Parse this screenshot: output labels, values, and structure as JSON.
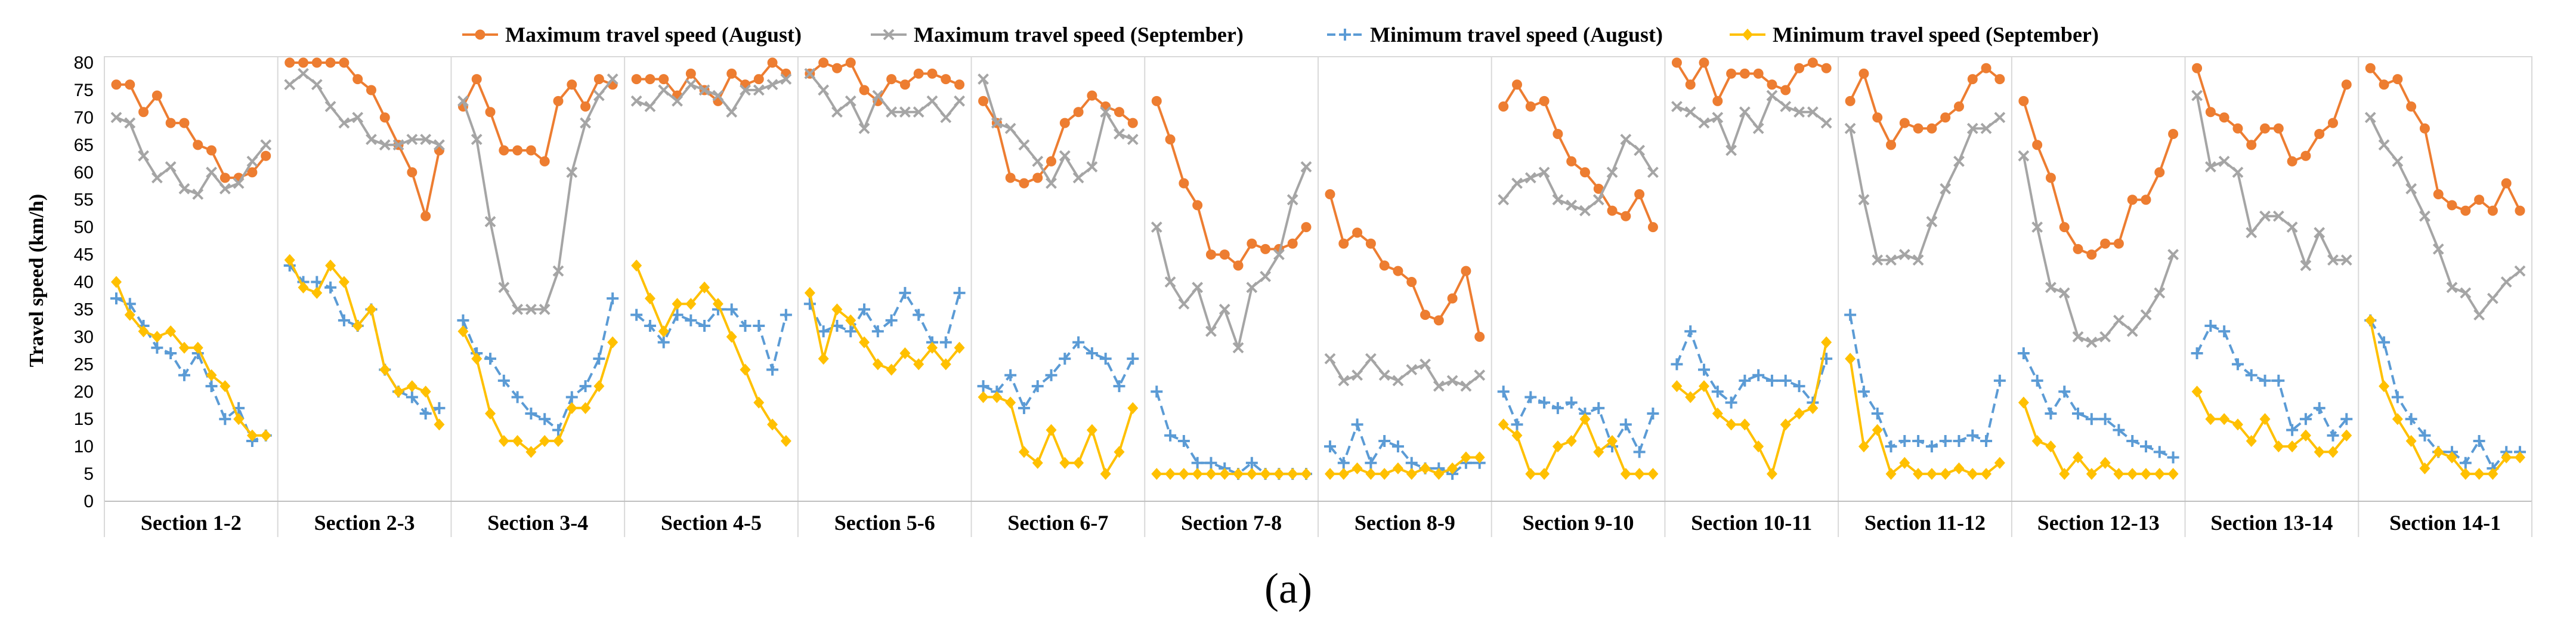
{
  "chart_data": {
    "type": "line",
    "title": "",
    "caption": "(a)",
    "xlabel": "",
    "ylabel": "Travel speed (km/h)",
    "ylim": [
      0,
      80
    ],
    "yticks": [
      0,
      5,
      10,
      15,
      20,
      25,
      30,
      35,
      40,
      45,
      50,
      55,
      60,
      65,
      70,
      75,
      80
    ],
    "grid": "vertical separators between sections",
    "legend_position": "top",
    "categories": [
      "Section 1-2",
      "Section 2-3",
      "Section 3-4",
      "Section 4-5",
      "Section 5-6",
      "Section 6-7",
      "Section 7-8",
      "Section 8-9",
      "Section 9-10",
      "Section 10-11",
      "Section 11-12",
      "Section 12-13",
      "Section 13-14",
      "Section 14-1"
    ],
    "points_per_section": 12,
    "series": [
      {
        "name": "Maximum travel speed (August)",
        "color": "#ED7D31",
        "marker": "circle",
        "line": "solid",
        "values": [
          [
            76,
            76,
            71,
            74,
            69,
            69,
            65,
            64,
            59,
            59,
            60,
            63
          ],
          [
            80,
            80,
            80,
            80,
            80,
            77,
            75,
            70,
            65,
            60,
            52,
            64
          ],
          [
            72,
            77,
            71,
            64,
            64,
            64,
            62,
            73,
            76,
            72,
            77,
            76
          ],
          [
            77,
            77,
            77,
            74,
            78,
            75,
            73,
            78,
            76,
            77,
            80,
            78
          ],
          [
            78,
            80,
            79,
            80,
            75,
            73,
            77,
            76,
            78,
            78,
            77,
            76
          ],
          [
            73,
            69,
            59,
            58,
            59,
            62,
            69,
            71,
            74,
            72,
            71,
            69
          ],
          [
            73,
            66,
            58,
            54,
            45,
            45,
            43,
            47,
            46,
            46,
            47,
            50
          ],
          [
            56,
            47,
            49,
            47,
            43,
            42,
            40,
            34,
            33,
            37,
            42,
            30
          ],
          [
            72,
            76,
            72,
            73,
            67,
            62,
            60,
            57,
            53,
            52,
            56,
            50
          ],
          [
            80,
            76,
            80,
            73,
            78,
            78,
            78,
            76,
            75,
            79,
            80,
            79
          ],
          [
            73,
            78,
            70,
            65,
            69,
            68,
            68,
            70,
            72,
            77,
            79,
            77
          ],
          [
            73,
            65,
            59,
            50,
            46,
            45,
            47,
            47,
            55,
            55,
            60,
            67
          ],
          [
            79,
            71,
            70,
            68,
            65,
            68,
            68,
            62,
            63,
            67,
            69,
            76
          ],
          [
            79,
            76,
            77,
            72,
            68,
            56,
            54,
            53,
            55,
            53,
            58,
            53
          ]
        ]
      },
      {
        "name": "Maximum travel speed (September)",
        "color": "#A5A5A5",
        "marker": "cross",
        "line": "solid",
        "values": [
          [
            70,
            69,
            63,
            59,
            61,
            57,
            56,
            60,
            57,
            58,
            62,
            65
          ],
          [
            76,
            78,
            76,
            72,
            69,
            70,
            66,
            65,
            65,
            66,
            66,
            65
          ],
          [
            73,
            66,
            51,
            39,
            35,
            35,
            35,
            42,
            60,
            69,
            74,
            77
          ],
          [
            73,
            72,
            75,
            73,
            76,
            75,
            74,
            71,
            75,
            75,
            76,
            77
          ],
          [
            78,
            75,
            71,
            73,
            68,
            74,
            71,
            71,
            71,
            73,
            70,
            73
          ],
          [
            77,
            69,
            68,
            65,
            62,
            58,
            63,
            59,
            61,
            71,
            67,
            66
          ],
          [
            50,
            40,
            36,
            39,
            31,
            35,
            28,
            39,
            41,
            45,
            55,
            61
          ],
          [
            26,
            22,
            23,
            26,
            23,
            22,
            24,
            25,
            21,
            22,
            21,
            23
          ],
          [
            55,
            58,
            59,
            60,
            55,
            54,
            53,
            55,
            60,
            66,
            64,
            60
          ],
          [
            72,
            71,
            69,
            70,
            64,
            71,
            68,
            74,
            72,
            71,
            71,
            69
          ],
          [
            68,
            55,
            44,
            44,
            45,
            44,
            51,
            57,
            62,
            68,
            68,
            70
          ],
          [
            63,
            50,
            39,
            38,
            30,
            29,
            30,
            33,
            31,
            34,
            38,
            45
          ],
          [
            74,
            61,
            62,
            60,
            49,
            52,
            52,
            50,
            43,
            49,
            44,
            44
          ],
          [
            70,
            65,
            62,
            57,
            52,
            46,
            39,
            38,
            34,
            37,
            40,
            42
          ]
        ]
      },
      {
        "name": "Minimum travel speed (August)",
        "color": "#5B9BD5",
        "marker": "plus",
        "line": "dashed",
        "values": [
          [
            37,
            36,
            32,
            28,
            27,
            23,
            27,
            21,
            15,
            17,
            11,
            12
          ],
          [
            43,
            40,
            40,
            39,
            33,
            32,
            35,
            24,
            20,
            19,
            16,
            17
          ],
          [
            33,
            27,
            26,
            22,
            19,
            16,
            15,
            13,
            19,
            21,
            26,
            37
          ],
          [
            34,
            32,
            29,
            34,
            33,
            32,
            35,
            35,
            32,
            32,
            24,
            34
          ],
          [
            36,
            31,
            32,
            31,
            35,
            31,
            33,
            38,
            34,
            29,
            29,
            38
          ],
          [
            21,
            20,
            23,
            17,
            21,
            23,
            26,
            29,
            27,
            26,
            21,
            26
          ],
          [
            20,
            12,
            11,
            7,
            7,
            6,
            5,
            7,
            5,
            5,
            5,
            5
          ],
          [
            10,
            7,
            14,
            7,
            11,
            10,
            7,
            6,
            6,
            5,
            7,
            7
          ],
          [
            20,
            14,
            19,
            18,
            17,
            18,
            16,
            17,
            10,
            14,
            9,
            16
          ],
          [
            25,
            31,
            24,
            20,
            18,
            22,
            23,
            22,
            22,
            21,
            18,
            26
          ],
          [
            34,
            20,
            16,
            10,
            11,
            11,
            10,
            11,
            11,
            12,
            11,
            22
          ],
          [
            27,
            22,
            16,
            20,
            16,
            15,
            15,
            13,
            11,
            10,
            9,
            8
          ],
          [
            27,
            32,
            31,
            25,
            23,
            22,
            22,
            13,
            15,
            17,
            12,
            15
          ],
          [
            33,
            29,
            19,
            15,
            12,
            9,
            9,
            7,
            11,
            6,
            9,
            9
          ]
        ]
      },
      {
        "name": "Minimum travel speed (September)",
        "color": "#FFC000",
        "marker": "diamond",
        "line": "solid",
        "values": [
          [
            40,
            34,
            31,
            30,
            31,
            28,
            28,
            23,
            21,
            15,
            12,
            12
          ],
          [
            44,
            39,
            38,
            43,
            40,
            32,
            35,
            24,
            20,
            21,
            20,
            14
          ],
          [
            31,
            26,
            16,
            11,
            11,
            9,
            11,
            11,
            17,
            17,
            21,
            29
          ],
          [
            43,
            37,
            31,
            36,
            36,
            39,
            36,
            30,
            24,
            18,
            14,
            11
          ],
          [
            38,
            26,
            35,
            33,
            29,
            25,
            24,
            27,
            25,
            28,
            25,
            28
          ],
          [
            19,
            19,
            18,
            9,
            7,
            13,
            7,
            7,
            13,
            5,
            9,
            17
          ],
          [
            5,
            5,
            5,
            5,
            5,
            5,
            5,
            5,
            5,
            5,
            5,
            5
          ],
          [
            5,
            5,
            6,
            5,
            5,
            6,
            5,
            6,
            5,
            6,
            8,
            8
          ],
          [
            14,
            12,
            5,
            5,
            10,
            11,
            15,
            9,
            11,
            5,
            5,
            5
          ],
          [
            21,
            19,
            21,
            16,
            14,
            14,
            10,
            5,
            14,
            16,
            17,
            29
          ],
          [
            26,
            10,
            13,
            5,
            7,
            5,
            5,
            5,
            6,
            5,
            5,
            7
          ],
          [
            18,
            11,
            10,
            5,
            8,
            5,
            7,
            5,
            5,
            5,
            5,
            5
          ],
          [
            20,
            15,
            15,
            14,
            11,
            15,
            10,
            10,
            12,
            9,
            9,
            12
          ],
          [
            33,
            21,
            15,
            11,
            6,
            9,
            8,
            5,
            5,
            5,
            8,
            8
          ]
        ]
      }
    ]
  }
}
